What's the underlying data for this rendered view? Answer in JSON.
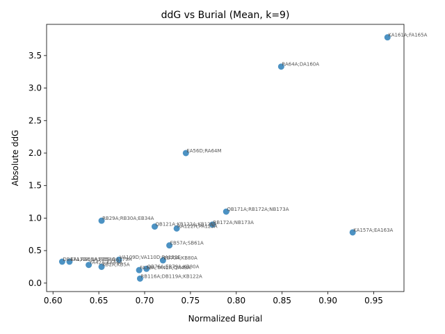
{
  "chart_data": {
    "type": "scatter",
    "title": "ddG vs Burial (Mean, k=9)",
    "xlabel": "Normalized Burial",
    "ylabel": "Absolute ddG",
    "xlim": [
      0.593,
      0.983
    ],
    "ylim": [
      -0.13,
      3.98
    ],
    "xticks": [
      "0.60",
      "0.65",
      "0.70",
      "0.75",
      "0.80",
      "0.85",
      "0.90",
      "0.95"
    ],
    "xtick_values": [
      0.6,
      0.65,
      0.7,
      0.75,
      0.8,
      0.85,
      0.9,
      0.95
    ],
    "yticks": [
      "0.0",
      "0.5",
      "1.0",
      "1.5",
      "2.0",
      "2.5",
      "3.0",
      "3.5"
    ],
    "ytick_values": [
      0.0,
      0.5,
      1.0,
      1.5,
      2.0,
      2.5,
      3.0,
      3.5
    ],
    "grid": false,
    "point_color": "#1f77b4",
    "points": [
      {
        "x": 0.965,
        "y": 3.78,
        "label": "KA161A;FA165A"
      },
      {
        "x": 0.849,
        "y": 3.33,
        "label": "RA64A;DA160A"
      },
      {
        "x": 0.745,
        "y": 2.0,
        "label": "EA56D;RA64M"
      },
      {
        "x": 0.789,
        "y": 1.1,
        "label": "QB171A;RB172A;NB173A"
      },
      {
        "x": 0.774,
        "y": 0.9,
        "label": "RB172A;NB173A"
      },
      {
        "x": 0.653,
        "y": 0.96,
        "label": "RB29A;RB30A;EB34A"
      },
      {
        "x": 0.711,
        "y": 0.87,
        "label": "QB121A;KB122A;KB126A"
      },
      {
        "x": 0.735,
        "y": 0.84,
        "label": "AA122H;PA123A"
      },
      {
        "x": 0.927,
        "y": 0.78,
        "label": "KA157A;EA163A"
      },
      {
        "x": 0.727,
        "y": 0.58,
        "label": "EB57A;SB61A"
      },
      {
        "x": 0.672,
        "y": 0.36,
        "label": "VA109D;VA110D;RA123E"
      },
      {
        "x": 0.72,
        "y": 0.35,
        "label": "EB70A;KB80A"
      },
      {
        "x": 0.61,
        "y": 0.33,
        "label": "DB47A;RB51A;RB54A"
      },
      {
        "x": 0.618,
        "y": 0.33,
        "label": "EA172A;NA175E;QA179H"
      },
      {
        "x": 0.639,
        "y": 0.28,
        "label": "YA42A;KA44A"
      },
      {
        "x": 0.653,
        "y": 0.25,
        "label": "KB2A;KB5A"
      },
      {
        "x": 0.702,
        "y": 0.22,
        "label": "QB76A;EB79A;KB80A"
      },
      {
        "x": 0.694,
        "y": 0.2,
        "label": "FA39A;YA42A;QA48A"
      },
      {
        "x": 0.695,
        "y": 0.07,
        "label": "RB116A;DB119A;KB122A"
      }
    ]
  }
}
